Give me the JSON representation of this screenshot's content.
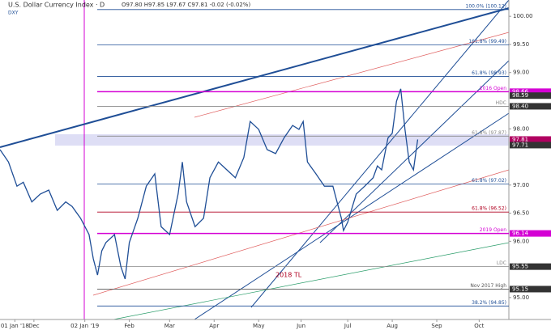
{
  "chart_data": {
    "type": "line",
    "title": "U.S. Dollar Currency Index · D",
    "subtitle": "O97.80  H97.85  L97.67  C97.81  -0.02 (-0.02%)",
    "x": [
      0,
      4,
      8,
      11,
      15,
      19,
      23,
      27,
      31,
      34,
      38,
      42,
      44,
      46,
      48,
      50,
      54,
      57,
      59,
      61,
      65,
      69,
      73,
      76,
      80,
      84,
      86,
      88,
      92,
      96,
      99,
      103,
      107,
      111,
      115,
      118,
      122,
      126,
      130,
      134,
      138,
      141,
      143,
      145,
      149,
      153,
      157,
      161,
      162,
      164,
      168,
      172,
      176,
      178,
      180,
      183,
      185,
      187,
      189,
      191,
      193,
      195,
      197
    ],
    "series": [
      {
        "name": "DXY",
        "color": "#1f4e96",
        "values": [
          97.63,
          97.41,
          96.98,
          97.05,
          96.7,
          96.84,
          96.91,
          96.55,
          96.7,
          96.62,
          96.41,
          96.12,
          95.69,
          95.4,
          95.83,
          95.98,
          96.12,
          95.55,
          95.33,
          95.98,
          96.41,
          96.98,
          97.2,
          96.26,
          96.12,
          96.84,
          97.41,
          96.7,
          96.26,
          96.41,
          97.13,
          97.41,
          97.27,
          97.13,
          97.49,
          98.13,
          97.99,
          97.63,
          97.56,
          97.84,
          98.06,
          97.99,
          98.13,
          97.41,
          97.2,
          96.98,
          96.98,
          96.41,
          96.19,
          96.34,
          96.84,
          96.98,
          97.13,
          97.34,
          97.27,
          97.84,
          97.92,
          98.49,
          98.71,
          97.99,
          97.41,
          97.27,
          97.81
        ]
      }
    ],
    "xlim": [
      0,
      240
    ],
    "xticks": [
      {
        "value": 7,
        "label": "01 Jan '18"
      },
      {
        "value": 16,
        "label": "Dec"
      },
      {
        "value": 40,
        "label": "02 Jan '19"
      },
      {
        "value": 61,
        "label": "Feb"
      },
      {
        "value": 80,
        "label": "Mar"
      },
      {
        "value": 101,
        "label": "Apr"
      },
      {
        "value": 122,
        "label": "May"
      },
      {
        "value": 142,
        "label": "Jun"
      },
      {
        "value": 164,
        "label": "Jul"
      },
      {
        "value": 185,
        "label": "Aug"
      },
      {
        "value": 206,
        "label": "Sep"
      },
      {
        "value": 226,
        "label": "Oct"
      }
    ],
    "ylim": [
      94.61,
      100.29
    ],
    "yticks": [
      {
        "value": 100,
        "label": "100.00"
      },
      {
        "value": 99.5,
        "label": "99.50"
      },
      {
        "value": 99,
        "label": "99.00"
      },
      {
        "value": 98,
        "label": "98.00"
      },
      {
        "value": 97,
        "label": "97.00"
      },
      {
        "value": 96.5,
        "label": "96.50"
      },
      {
        "value": 96,
        "label": "96.00"
      },
      {
        "value": 95,
        "label": "95.00"
      }
    ],
    "levels": [
      {
        "label": "100.0% (100.12)",
        "value": 100.12,
        "color": "#1f4e96"
      },
      {
        "label": "161.8% (99.49)",
        "value": 99.49,
        "color": "#1f4e96"
      },
      {
        "label": "61.8% (98.93)",
        "value": 98.93,
        "color": "#1f4e96"
      },
      {
        "label": "2016 Open",
        "value": 98.66,
        "color": "#d400d4"
      },
      {
        "label": "HDC",
        "value": 98.4,
        "color": "#888888"
      },
      {
        "label": "61.8% (97.87)",
        "value": 97.87,
        "color": "#888888"
      },
      {
        "label": "61.8% (97.02)",
        "value": 97.02,
        "color": "#1f4e96"
      },
      {
        "label": "61.8% (96.52)",
        "value": 96.52,
        "color": "#b00020"
      },
      {
        "label": "2019 Open",
        "value": 96.14,
        "color": "#d400d4"
      },
      {
        "label": "LDC",
        "value": 95.55,
        "color": "#888888"
      },
      {
        "label": "Nov 2017 High",
        "value": 95.15,
        "color": "#555555"
      },
      {
        "label": "38.2% (94.85)",
        "value": 94.85,
        "color": "#1f4e96"
      }
    ],
    "price_tags": [
      {
        "value": 98.66,
        "color": "#d400d4"
      },
      {
        "value": 98.59,
        "color": "#333333"
      },
      {
        "value": {
          "value": 98.4,
          "label": "98.40"
        },
        "color": "#333333"
      },
      {
        "value": 97.81,
        "color": "#b00060"
      },
      {
        "value": 97.71,
        "color": "#333333"
      },
      {
        "value": 96.14,
        "color": "#d400d4"
      },
      {
        "value": 95.55,
        "color": "#333333"
      },
      {
        "value": 95.15,
        "color": "#333333"
      }
    ],
    "annotations": [
      "2018 TL"
    ]
  }
}
